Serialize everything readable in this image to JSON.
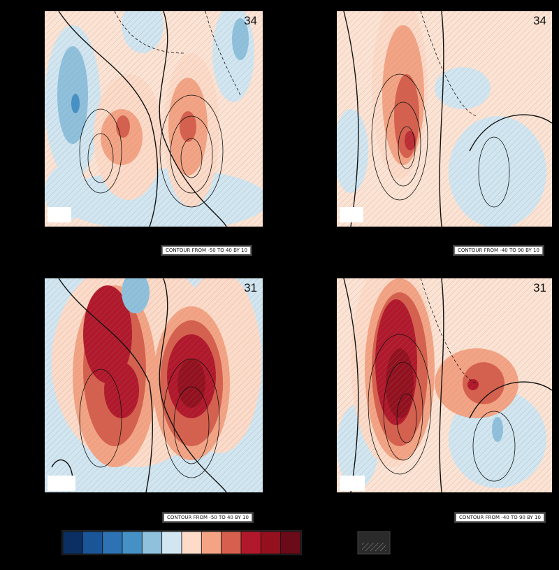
{
  "panels": [
    {
      "id": "top-left",
      "number": "34",
      "contour_label": "CONTOUR FROM -50 TO 40 BY 10"
    },
    {
      "id": "top-right",
      "number": "34",
      "contour_label": "CONTOUR FROM -40 TO 90 BY 10"
    },
    {
      "id": "bottom-left",
      "number": "31",
      "contour_label": "CONTOUR FROM -50 TO 40 BY 10"
    },
    {
      "id": "bottom-right",
      "number": "31",
      "contour_label": "CONTOUR FROM -40 TO 90 BY 10"
    }
  ],
  "colorbar": {
    "colors": [
      "#0b2f62",
      "#1a5598",
      "#2d73b3",
      "#4591c5",
      "#8fc1dd",
      "#d1e6f1",
      "#fddbc8",
      "#f4a484",
      "#d6604d",
      "#b2182b",
      "#93111f",
      "#6b0a18"
    ]
  },
  "chart_data": {
    "type": "heatmap",
    "panel_count": 4,
    "shading_levels": 12,
    "contour_ranges": [
      {
        "panel": "top-left",
        "from": -50,
        "to": 40,
        "by": 10
      },
      {
        "panel": "top-right",
        "from": -40,
        "to": 90,
        "by": 10
      },
      {
        "panel": "bottom-left",
        "from": -50,
        "to": 40,
        "by": 10
      },
      {
        "panel": "bottom-right",
        "from": -40,
        "to": 90,
        "by": 10
      }
    ]
  }
}
